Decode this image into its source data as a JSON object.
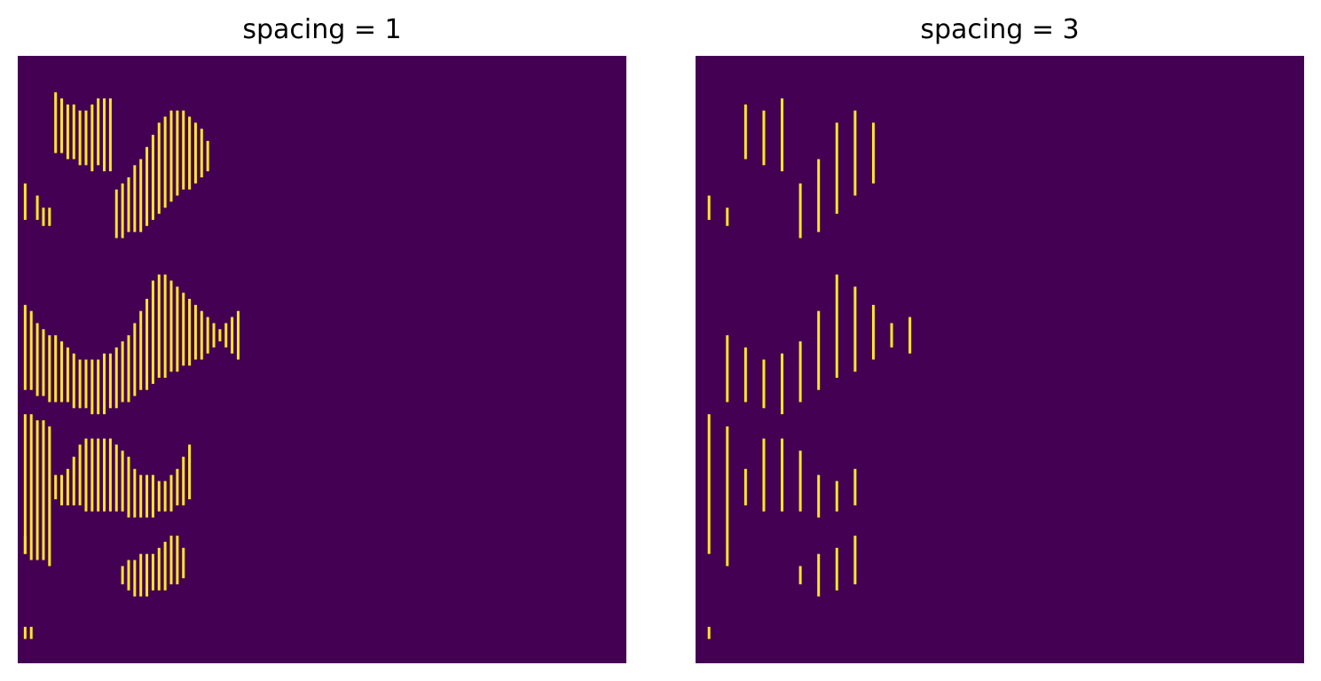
{
  "figure": {
    "colors": {
      "background": "#440154",
      "foreground": "#fde725"
    }
  },
  "chart_data": [
    {
      "type": "heatmap",
      "title": "spacing = 1",
      "xlabel": "",
      "ylabel": "",
      "grid": false,
      "colormap": "viridis",
      "values_range": [
        0,
        1
      ],
      "xlim": [
        0,
        100
      ],
      "ylim": [
        100,
        0
      ],
      "column_spacing": 1,
      "bars": [
        {
          "x": 1,
          "y": [
            21,
            27
          ]
        },
        {
          "x": 1,
          "y": [
            41,
            55
          ]
        },
        {
          "x": 1,
          "y": [
            59,
            82
          ]
        },
        {
          "x": 1,
          "y": [
            79,
            82
          ]
        },
        {
          "x": 1,
          "y": [
            94,
            96
          ]
        },
        {
          "x": 2,
          "y": [
            42,
            55
          ]
        },
        {
          "x": 2,
          "y": [
            59,
            83
          ]
        },
        {
          "x": 2,
          "y": [
            94,
            96
          ]
        },
        {
          "x": 3,
          "y": [
            23,
            27
          ]
        },
        {
          "x": 3,
          "y": [
            44,
            56
          ]
        },
        {
          "x": 3,
          "y": [
            60,
            83
          ]
        },
        {
          "x": 4,
          "y": [
            25,
            28
          ]
        },
        {
          "x": 4,
          "y": [
            45,
            56
          ]
        },
        {
          "x": 4,
          "y": [
            60,
            83
          ]
        },
        {
          "x": 5,
          "y": [
            25,
            28
          ]
        },
        {
          "x": 5,
          "y": [
            46,
            57
          ]
        },
        {
          "x": 5,
          "y": [
            61,
            84
          ]
        },
        {
          "x": 6,
          "y": [
            6,
            16
          ]
        },
        {
          "x": 6,
          "y": [
            46,
            57
          ]
        },
        {
          "x": 6,
          "y": [
            69,
            73
          ]
        },
        {
          "x": 7,
          "y": [
            7,
            16
          ]
        },
        {
          "x": 7,
          "y": [
            47,
            57
          ]
        },
        {
          "x": 7,
          "y": [
            69,
            74
          ]
        },
        {
          "x": 8,
          "y": [
            8,
            17
          ]
        },
        {
          "x": 8,
          "y": [
            48,
            57
          ]
        },
        {
          "x": 8,
          "y": [
            68,
            74
          ]
        },
        {
          "x": 9,
          "y": [
            8,
            17
          ]
        },
        {
          "x": 9,
          "y": [
            49,
            58
          ]
        },
        {
          "x": 9,
          "y": [
            66,
            74
          ]
        },
        {
          "x": 10,
          "y": [
            9,
            18
          ]
        },
        {
          "x": 10,
          "y": [
            50,
            58
          ]
        },
        {
          "x": 10,
          "y": [
            64,
            74
          ]
        },
        {
          "x": 11,
          "y": [
            9,
            18
          ]
        },
        {
          "x": 11,
          "y": [
            50,
            58
          ]
        },
        {
          "x": 11,
          "y": [
            63,
            75
          ]
        },
        {
          "x": 12,
          "y": [
            8,
            19
          ]
        },
        {
          "x": 12,
          "y": [
            50,
            59
          ]
        },
        {
          "x": 12,
          "y": [
            63,
            75
          ]
        },
        {
          "x": 13,
          "y": [
            7,
            18
          ]
        },
        {
          "x": 13,
          "y": [
            50,
            59
          ]
        },
        {
          "x": 13,
          "y": [
            63,
            75
          ]
        },
        {
          "x": 14,
          "y": [
            7,
            19
          ]
        },
        {
          "x": 14,
          "y": [
            49,
            59
          ]
        },
        {
          "x": 14,
          "y": [
            63,
            75
          ]
        },
        {
          "x": 15,
          "y": [
            7,
            19
          ]
        },
        {
          "x": 15,
          "y": [
            49,
            58
          ]
        },
        {
          "x": 15,
          "y": [
            63,
            75
          ]
        },
        {
          "x": 16,
          "y": [
            22,
            30
          ]
        },
        {
          "x": 16,
          "y": [
            48,
            58
          ]
        },
        {
          "x": 16,
          "y": [
            64,
            75
          ]
        },
        {
          "x": 17,
          "y": [
            21,
            30
          ]
        },
        {
          "x": 17,
          "y": [
            47,
            57
          ]
        },
        {
          "x": 17,
          "y": [
            65,
            75
          ]
        },
        {
          "x": 17,
          "y": [
            84,
            87
          ]
        },
        {
          "x": 18,
          "y": [
            20,
            29
          ]
        },
        {
          "x": 18,
          "y": [
            46,
            57
          ]
        },
        {
          "x": 18,
          "y": [
            66,
            76
          ]
        },
        {
          "x": 18,
          "y": [
            83,
            88
          ]
        },
        {
          "x": 19,
          "y": [
            18,
            29
          ]
        },
        {
          "x": 19,
          "y": [
            44,
            56
          ]
        },
        {
          "x": 19,
          "y": [
            68,
            76
          ]
        },
        {
          "x": 19,
          "y": [
            83,
            89
          ]
        },
        {
          "x": 20,
          "y": [
            17,
            29
          ]
        },
        {
          "x": 20,
          "y": [
            42,
            55
          ]
        },
        {
          "x": 20,
          "y": [
            69,
            76
          ]
        },
        {
          "x": 20,
          "y": [
            82,
            89
          ]
        },
        {
          "x": 21,
          "y": [
            15,
            28
          ]
        },
        {
          "x": 21,
          "y": [
            40,
            55
          ]
        },
        {
          "x": 21,
          "y": [
            69,
            76
          ]
        },
        {
          "x": 21,
          "y": [
            82,
            89
          ]
        },
        {
          "x": 22,
          "y": [
            13,
            27
          ]
        },
        {
          "x": 22,
          "y": [
            37,
            54
          ]
        },
        {
          "x": 22,
          "y": [
            69,
            76
          ]
        },
        {
          "x": 22,
          "y": [
            82,
            88
          ]
        },
        {
          "x": 23,
          "y": [
            11,
            26
          ]
        },
        {
          "x": 23,
          "y": [
            36,
            53
          ]
        },
        {
          "x": 23,
          "y": [
            70,
            75
          ]
        },
        {
          "x": 23,
          "y": [
            81,
            88
          ]
        },
        {
          "x": 24,
          "y": [
            10,
            25
          ]
        },
        {
          "x": 24,
          "y": [
            36,
            53
          ]
        },
        {
          "x": 24,
          "y": [
            70,
            75
          ]
        },
        {
          "x": 24,
          "y": [
            80,
            88
          ]
        },
        {
          "x": 25,
          "y": [
            9,
            24
          ]
        },
        {
          "x": 25,
          "y": [
            37,
            52
          ]
        },
        {
          "x": 25,
          "y": [
            69,
            75
          ]
        },
        {
          "x": 25,
          "y": [
            79,
            87
          ]
        },
        {
          "x": 26,
          "y": [
            9,
            23
          ]
        },
        {
          "x": 26,
          "y": [
            38,
            52
          ]
        },
        {
          "x": 26,
          "y": [
            68,
            74
          ]
        },
        {
          "x": 26,
          "y": [
            79,
            87
          ]
        },
        {
          "x": 27,
          "y": [
            9,
            22
          ]
        },
        {
          "x": 27,
          "y": [
            39,
            51
          ]
        },
        {
          "x": 27,
          "y": [
            66,
            74
          ]
        },
        {
          "x": 27,
          "y": [
            81,
            86
          ]
        },
        {
          "x": 28,
          "y": [
            10,
            22
          ]
        },
        {
          "x": 28,
          "y": [
            40,
            51
          ]
        },
        {
          "x": 28,
          "y": [
            64,
            73
          ]
        },
        {
          "x": 29,
          "y": [
            11,
            21
          ]
        },
        {
          "x": 29,
          "y": [
            41,
            50
          ]
        },
        {
          "x": 30,
          "y": [
            12,
            20
          ]
        },
        {
          "x": 30,
          "y": [
            42,
            50
          ]
        },
        {
          "x": 31,
          "y": [
            14,
            19
          ]
        },
        {
          "x": 31,
          "y": [
            43,
            49
          ]
        },
        {
          "x": 32,
          "y": [
            44,
            48
          ]
        },
        {
          "x": 33,
          "y": [
            45,
            47
          ]
        },
        {
          "x": 34,
          "y": [
            44,
            48
          ]
        },
        {
          "x": 35,
          "y": [
            43,
            49
          ]
        },
        {
          "x": 36,
          "y": [
            42,
            50
          ]
        }
      ]
    },
    {
      "type": "heatmap",
      "title": "spacing = 3",
      "xlabel": "",
      "ylabel": "",
      "grid": false,
      "colormap": "viridis",
      "values_range": [
        0,
        1
      ],
      "xlim": [
        0,
        100
      ],
      "ylim": [
        100,
        0
      ],
      "column_spacing": 3,
      "bars": [
        {
          "x": 2,
          "y": [
            23,
            27
          ]
        },
        {
          "x": 2,
          "y": [
            59,
            82
          ]
        },
        {
          "x": 2,
          "y": [
            94,
            96
          ]
        },
        {
          "x": 5,
          "y": [
            25,
            28
          ]
        },
        {
          "x": 5,
          "y": [
            46,
            57
          ]
        },
        {
          "x": 5,
          "y": [
            61,
            84
          ]
        },
        {
          "x": 8,
          "y": [
            8,
            17
          ]
        },
        {
          "x": 8,
          "y": [
            48,
            57
          ]
        },
        {
          "x": 8,
          "y": [
            68,
            74
          ]
        },
        {
          "x": 11,
          "y": [
            9,
            18
          ]
        },
        {
          "x": 11,
          "y": [
            50,
            58
          ]
        },
        {
          "x": 11,
          "y": [
            63,
            75
          ]
        },
        {
          "x": 14,
          "y": [
            7,
            19
          ]
        },
        {
          "x": 14,
          "y": [
            49,
            59
          ]
        },
        {
          "x": 14,
          "y": [
            63,
            75
          ]
        },
        {
          "x": 17,
          "y": [
            21,
            30
          ]
        },
        {
          "x": 17,
          "y": [
            47,
            57
          ]
        },
        {
          "x": 17,
          "y": [
            65,
            75
          ]
        },
        {
          "x": 17,
          "y": [
            84,
            87
          ]
        },
        {
          "x": 20,
          "y": [
            17,
            29
          ]
        },
        {
          "x": 20,
          "y": [
            42,
            55
          ]
        },
        {
          "x": 20,
          "y": [
            69,
            76
          ]
        },
        {
          "x": 20,
          "y": [
            82,
            89
          ]
        },
        {
          "x": 23,
          "y": [
            11,
            26
          ]
        },
        {
          "x": 23,
          "y": [
            36,
            53
          ]
        },
        {
          "x": 23,
          "y": [
            70,
            75
          ]
        },
        {
          "x": 23,
          "y": [
            81,
            88
          ]
        },
        {
          "x": 26,
          "y": [
            9,
            23
          ]
        },
        {
          "x": 26,
          "y": [
            38,
            52
          ]
        },
        {
          "x": 26,
          "y": [
            68,
            74
          ]
        },
        {
          "x": 26,
          "y": [
            79,
            87
          ]
        },
        {
          "x": 29,
          "y": [
            11,
            21
          ]
        },
        {
          "x": 29,
          "y": [
            41,
            50
          ]
        },
        {
          "x": 32,
          "y": [
            44,
            48
          ]
        },
        {
          "x": 35,
          "y": [
            43,
            49
          ]
        }
      ]
    }
  ]
}
